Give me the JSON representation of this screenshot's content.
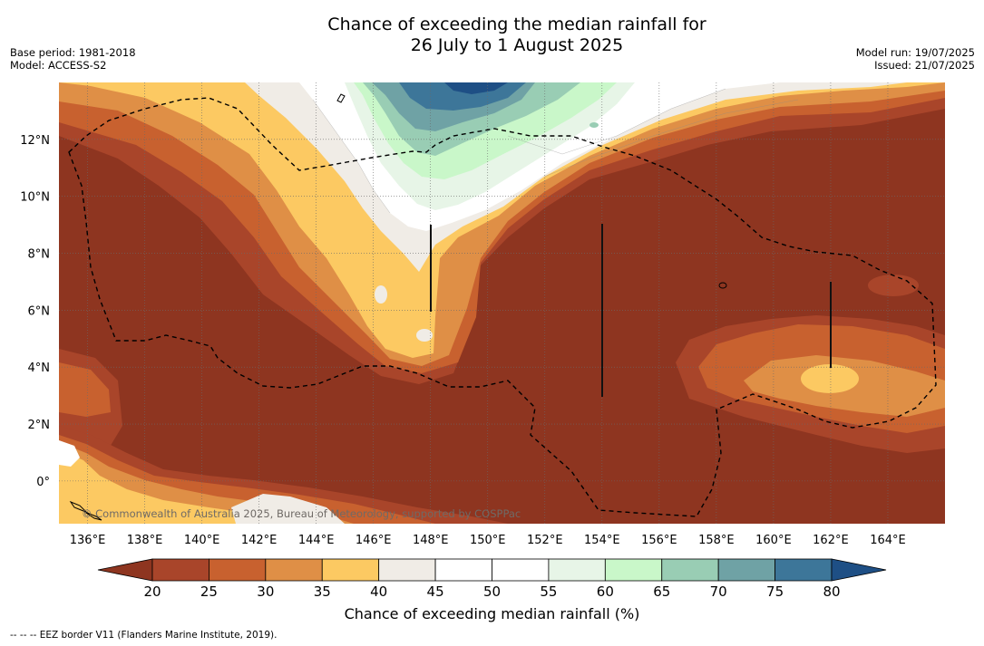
{
  "header": {
    "title_line1": "Chance of exceeding the median rainfall for",
    "title_line2": "26 July to 1 August 2025",
    "base_period": "Base period: 1981-2018",
    "model": "Model: ACCESS-S2",
    "model_run": "Model run: 19/07/2025",
    "issued": "Issued: 21/07/2025"
  },
  "map": {
    "lon_range": [
      135,
      166
    ],
    "lat_range": [
      -1.5,
      14
    ],
    "x_ticks": [
      "136°E",
      "138°E",
      "140°E",
      "142°E",
      "144°E",
      "146°E",
      "148°E",
      "150°E",
      "152°E",
      "154°E",
      "156°E",
      "158°E",
      "160°E",
      "162°E",
      "164°E"
    ],
    "y_ticks": [
      "0°",
      "2°N",
      "4°N",
      "6°N",
      "8°N",
      "10°N",
      "12°N"
    ],
    "copyright": "© Commonwealth of Australia 2025, Bureau of Meteorology, supported by COSPPac"
  },
  "legend": {
    "title": "Chance of exceeding median rainfall (%)",
    "ticks": [
      "20",
      "25",
      "30",
      "35",
      "40",
      "45",
      "50",
      "55",
      "60",
      "65",
      "70",
      "75",
      "80"
    ],
    "colors": [
      "#8e3520",
      "#a9452a",
      "#c8612f",
      "#df8f46",
      "#fcc962",
      "#f0ece6",
      "#ffffff",
      "#ffffff",
      "#e7f5e7",
      "#c9f7c9",
      "#99cdb4",
      "#6fa2a5",
      "#3d7699",
      "#1e4f85"
    ]
  },
  "footnote": "--  --  -- EEZ border V11 (Flanders Marine Institute, 2019)."
}
